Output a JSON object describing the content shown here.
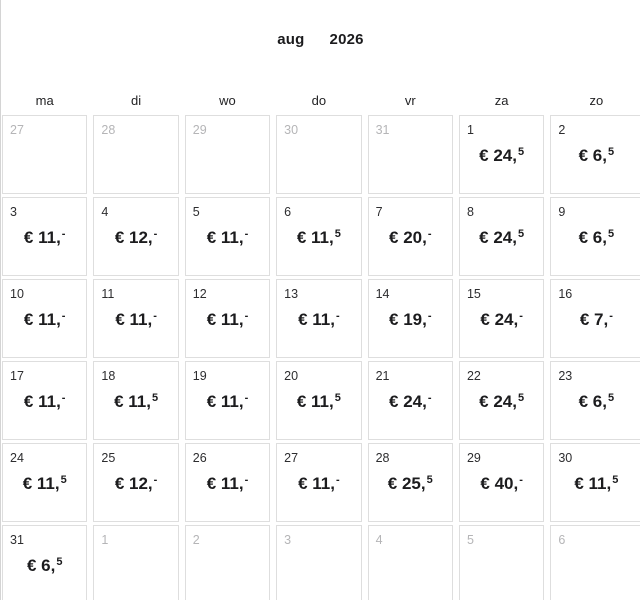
{
  "header": {
    "month": "aug",
    "year": "2026"
  },
  "weekdays": [
    "ma",
    "di",
    "wo",
    "do",
    "vr",
    "za",
    "zo"
  ],
  "calendar": {
    "cells": [
      {
        "day": "27",
        "other_month": true
      },
      {
        "day": "28",
        "other_month": true
      },
      {
        "day": "29",
        "other_month": true
      },
      {
        "day": "30",
        "other_month": true
      },
      {
        "day": "31",
        "other_month": true
      },
      {
        "day": "1",
        "price_main": "€ 24,",
        "price_sup": "5"
      },
      {
        "day": "2",
        "price_main": "€ 6,",
        "price_sup": "5"
      },
      {
        "day": "3",
        "price_main": "€ 11,",
        "price_sup": "-"
      },
      {
        "day": "4",
        "price_main": "€ 12,",
        "price_sup": "-"
      },
      {
        "day": "5",
        "price_main": "€ 11,",
        "price_sup": "-"
      },
      {
        "day": "6",
        "price_main": "€ 11,",
        "price_sup": "5"
      },
      {
        "day": "7",
        "price_main": "€ 20,",
        "price_sup": "-"
      },
      {
        "day": "8",
        "price_main": "€ 24,",
        "price_sup": "5"
      },
      {
        "day": "9",
        "price_main": "€ 6,",
        "price_sup": "5"
      },
      {
        "day": "10",
        "price_main": "€ 11,",
        "price_sup": "-"
      },
      {
        "day": "11",
        "price_main": "€ 11,",
        "price_sup": "-"
      },
      {
        "day": "12",
        "price_main": "€ 11,",
        "price_sup": "-"
      },
      {
        "day": "13",
        "price_main": "€ 11,",
        "price_sup": "-"
      },
      {
        "day": "14",
        "price_main": "€ 19,",
        "price_sup": "-"
      },
      {
        "day": "15",
        "price_main": "€ 24,",
        "price_sup": "-"
      },
      {
        "day": "16",
        "price_main": "€ 7,",
        "price_sup": "-"
      },
      {
        "day": "17",
        "price_main": "€ 11,",
        "price_sup": "-"
      },
      {
        "day": "18",
        "price_main": "€ 11,",
        "price_sup": "5"
      },
      {
        "day": "19",
        "price_main": "€ 11,",
        "price_sup": "-"
      },
      {
        "day": "20",
        "price_main": "€ 11,",
        "price_sup": "5"
      },
      {
        "day": "21",
        "price_main": "€ 24,",
        "price_sup": "-"
      },
      {
        "day": "22",
        "price_main": "€ 24,",
        "price_sup": "5"
      },
      {
        "day": "23",
        "price_main": "€ 6,",
        "price_sup": "5"
      },
      {
        "day": "24",
        "price_main": "€ 11,",
        "price_sup": "5"
      },
      {
        "day": "25",
        "price_main": "€ 12,",
        "price_sup": "-"
      },
      {
        "day": "26",
        "price_main": "€ 11,",
        "price_sup": "-"
      },
      {
        "day": "27",
        "price_main": "€ 11,",
        "price_sup": "-"
      },
      {
        "day": "28",
        "price_main": "€ 25,",
        "price_sup": "5"
      },
      {
        "day": "29",
        "price_main": "€ 40,",
        "price_sup": "-"
      },
      {
        "day": "30",
        "price_main": "€ 11,",
        "price_sup": "5"
      },
      {
        "day": "31",
        "price_main": "€ 6,",
        "price_sup": "5"
      },
      {
        "day": "1",
        "other_month": true
      },
      {
        "day": "2",
        "other_month": true
      },
      {
        "day": "3",
        "other_month": true
      },
      {
        "day": "4",
        "other_month": true
      },
      {
        "day": "5",
        "other_month": true
      },
      {
        "day": "6",
        "other_month": true
      }
    ]
  },
  "colors": {
    "cell_border": "#dedede",
    "price_text": "#1c1c1e",
    "day_number": "#2d2d2f",
    "other_month_day_number": "#b5b5b7",
    "background": "#ffffff"
  }
}
